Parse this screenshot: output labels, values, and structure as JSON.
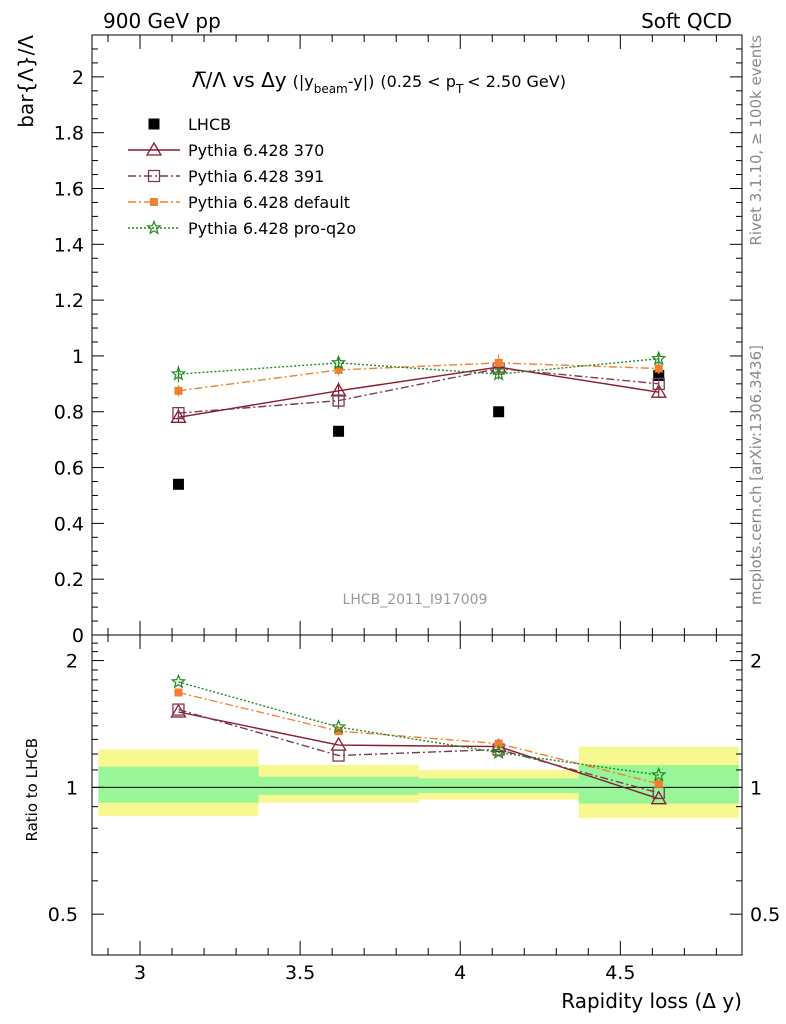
{
  "header": {
    "left": "900 GeV pp",
    "right": "Soft QCD"
  },
  "side_text": {
    "rivet": "Rivet 3.1.10, ≥ 100k events",
    "mcplots": "mcplots.cern.ch [arXiv:1306.3436]"
  },
  "watermark": "LHCB_2011_I917009",
  "plot_title": {
    "ratio": "Λ̅/Λ vs Δy",
    "bracket": "(|y",
    "beam_sub": "beam",
    "bracket_end": "-y|)",
    "range_start": "(0.25 < p",
    "pt_sub": "T",
    "range_end": "< 2.50 GeV)"
  },
  "chart_data": [
    {
      "type": "scatter",
      "panel": "main",
      "ylabel": "bar{Λ}/Λ",
      "xlim": [
        2.85,
        4.88
      ],
      "ylim": [
        0,
        2.15
      ],
      "yticks": [
        0,
        0.2,
        0.4,
        0.6,
        0.8,
        1,
        1.2,
        1.4,
        1.6,
        1.8,
        2
      ],
      "ytick_labels": [
        "0",
        "0.2",
        "0.4",
        "0.6",
        "0.8",
        "1",
        "1.2",
        "1.4",
        "1.6",
        "1.8",
        "2"
      ],
      "legend_position": "top-left",
      "series": [
        {
          "name": "LHCB",
          "color": "#000000",
          "x": [
            3.12,
            3.62,
            4.12,
            4.62
          ],
          "y": [
            0.54,
            0.73,
            0.8,
            0.93
          ]
        },
        {
          "name": "Pythia 6.428 370",
          "color": "#8b1a2b",
          "x": [
            3.12,
            3.62,
            4.12,
            4.62
          ],
          "y": [
            0.78,
            0.875,
            0.96,
            0.87
          ],
          "err": [
            0.02,
            0.03,
            0.02,
            0.02
          ]
        },
        {
          "name": "Pythia 6.428 391",
          "color": "#7b3a52",
          "x": [
            3.12,
            3.62,
            4.12,
            4.62
          ],
          "y": [
            0.795,
            0.84,
            0.955,
            0.9
          ],
          "err": [
            0.02,
            0.03,
            0.02,
            0.02
          ]
        },
        {
          "name": "Pythia 6.428 default",
          "color": "#f08030",
          "x": [
            3.12,
            3.62,
            4.12,
            4.62
          ],
          "y": [
            0.875,
            0.95,
            0.975,
            0.955
          ],
          "err": [
            0.02,
            0.02,
            0.03,
            0.02
          ]
        },
        {
          "name": "Pythia 6.428 pro-q2o",
          "color": "#1f8b1f",
          "x": [
            3.12,
            3.62,
            4.12,
            4.62
          ],
          "y": [
            0.935,
            0.975,
            0.935,
            0.99
          ],
          "err": [
            0.03,
            0.02,
            0.02,
            0.02
          ]
        }
      ]
    },
    {
      "type": "line",
      "panel": "ratio",
      "xlabel": "Rapidity loss (Δ y)",
      "ylabel": "Ratio to LHCB",
      "xlim": [
        2.85,
        4.88
      ],
      "ylim": [
        0.4,
        2.3
      ],
      "log_y": true,
      "xticks": [
        3,
        3.5,
        4,
        4.5
      ],
      "xtick_labels": [
        "3",
        "3.5",
        "4",
        "4.5"
      ],
      "yticks": [
        0.5,
        1,
        2
      ],
      "ytick_labels": [
        "0.5",
        "1",
        "2"
      ],
      "bands": [
        {
          "x0": 2.87,
          "x1": 3.37,
          "stat": [
            0.92,
            1.12
          ],
          "total": [
            0.855,
            1.23
          ]
        },
        {
          "x0": 3.37,
          "x1": 3.87,
          "stat": [
            0.96,
            1.06
          ],
          "total": [
            0.92,
            1.13
          ]
        },
        {
          "x0": 3.87,
          "x1": 4.37,
          "stat": [
            0.97,
            1.05
          ],
          "total": [
            0.935,
            1.1
          ]
        },
        {
          "x0": 4.37,
          "x1": 4.87,
          "stat": [
            0.915,
            1.13
          ],
          "total": [
            0.845,
            1.25
          ]
        }
      ],
      "band_colors": {
        "stat": "#98f598",
        "total": "#f8f890"
      },
      "series": [
        {
          "name": "Pythia 6.428 370",
          "x": [
            3.12,
            3.62,
            4.12,
            4.62
          ],
          "y": [
            1.51,
            1.26,
            1.25,
            0.94
          ]
        },
        {
          "name": "Pythia 6.428 391",
          "x": [
            3.12,
            3.62,
            4.12,
            4.62
          ],
          "y": [
            1.53,
            1.19,
            1.23,
            0.97
          ]
        },
        {
          "name": "Pythia 6.428 default",
          "x": [
            3.12,
            3.62,
            4.12,
            4.62
          ],
          "y": [
            1.68,
            1.36,
            1.27,
            1.02
          ]
        },
        {
          "name": "Pythia 6.428 pro-q2o",
          "x": [
            3.12,
            3.62,
            4.12,
            4.62
          ],
          "y": [
            1.78,
            1.39,
            1.21,
            1.07
          ]
        }
      ]
    }
  ]
}
